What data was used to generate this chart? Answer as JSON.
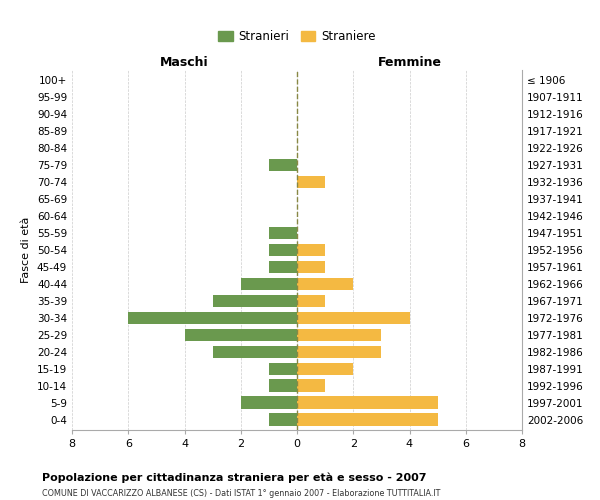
{
  "age_groups": [
    "100+",
    "95-99",
    "90-94",
    "85-89",
    "80-84",
    "75-79",
    "70-74",
    "65-69",
    "60-64",
    "55-59",
    "50-54",
    "45-49",
    "40-44",
    "35-39",
    "30-34",
    "25-29",
    "20-24",
    "15-19",
    "10-14",
    "5-9",
    "0-4"
  ],
  "birth_years": [
    "≤ 1906",
    "1907-1911",
    "1912-1916",
    "1917-1921",
    "1922-1926",
    "1927-1931",
    "1932-1936",
    "1937-1941",
    "1942-1946",
    "1947-1951",
    "1952-1956",
    "1957-1961",
    "1962-1966",
    "1967-1971",
    "1972-1976",
    "1977-1981",
    "1982-1986",
    "1987-1991",
    "1992-1996",
    "1997-2001",
    "2002-2006"
  ],
  "maschi": [
    0,
    0,
    0,
    0,
    0,
    1,
    0,
    0,
    0,
    1,
    1,
    1,
    2,
    3,
    6,
    4,
    3,
    1,
    1,
    2,
    1
  ],
  "femmine": [
    0,
    0,
    0,
    0,
    0,
    0,
    1,
    0,
    0,
    0,
    1,
    1,
    2,
    1,
    4,
    3,
    3,
    2,
    1,
    5,
    5
  ],
  "color_maschi": "#6a994e",
  "color_femmine": "#f4b942",
  "title": "Popolazione per cittadinanza straniera per età e sesso - 2007",
  "subtitle": "COMUNE DI VACCARIZZO ALBANESE (CS) - Dati ISTAT 1° gennaio 2007 - Elaborazione TUTTITALIA.IT",
  "xlabel_left": "Maschi",
  "xlabel_right": "Femmine",
  "ylabel_left": "Fasce di età",
  "legend_maschi": "Stranieri",
  "legend_femmine": "Straniere",
  "xlim": 8,
  "background_color": "#ffffff",
  "grid_color": "#cccccc",
  "dashed_line_color": "#888844"
}
